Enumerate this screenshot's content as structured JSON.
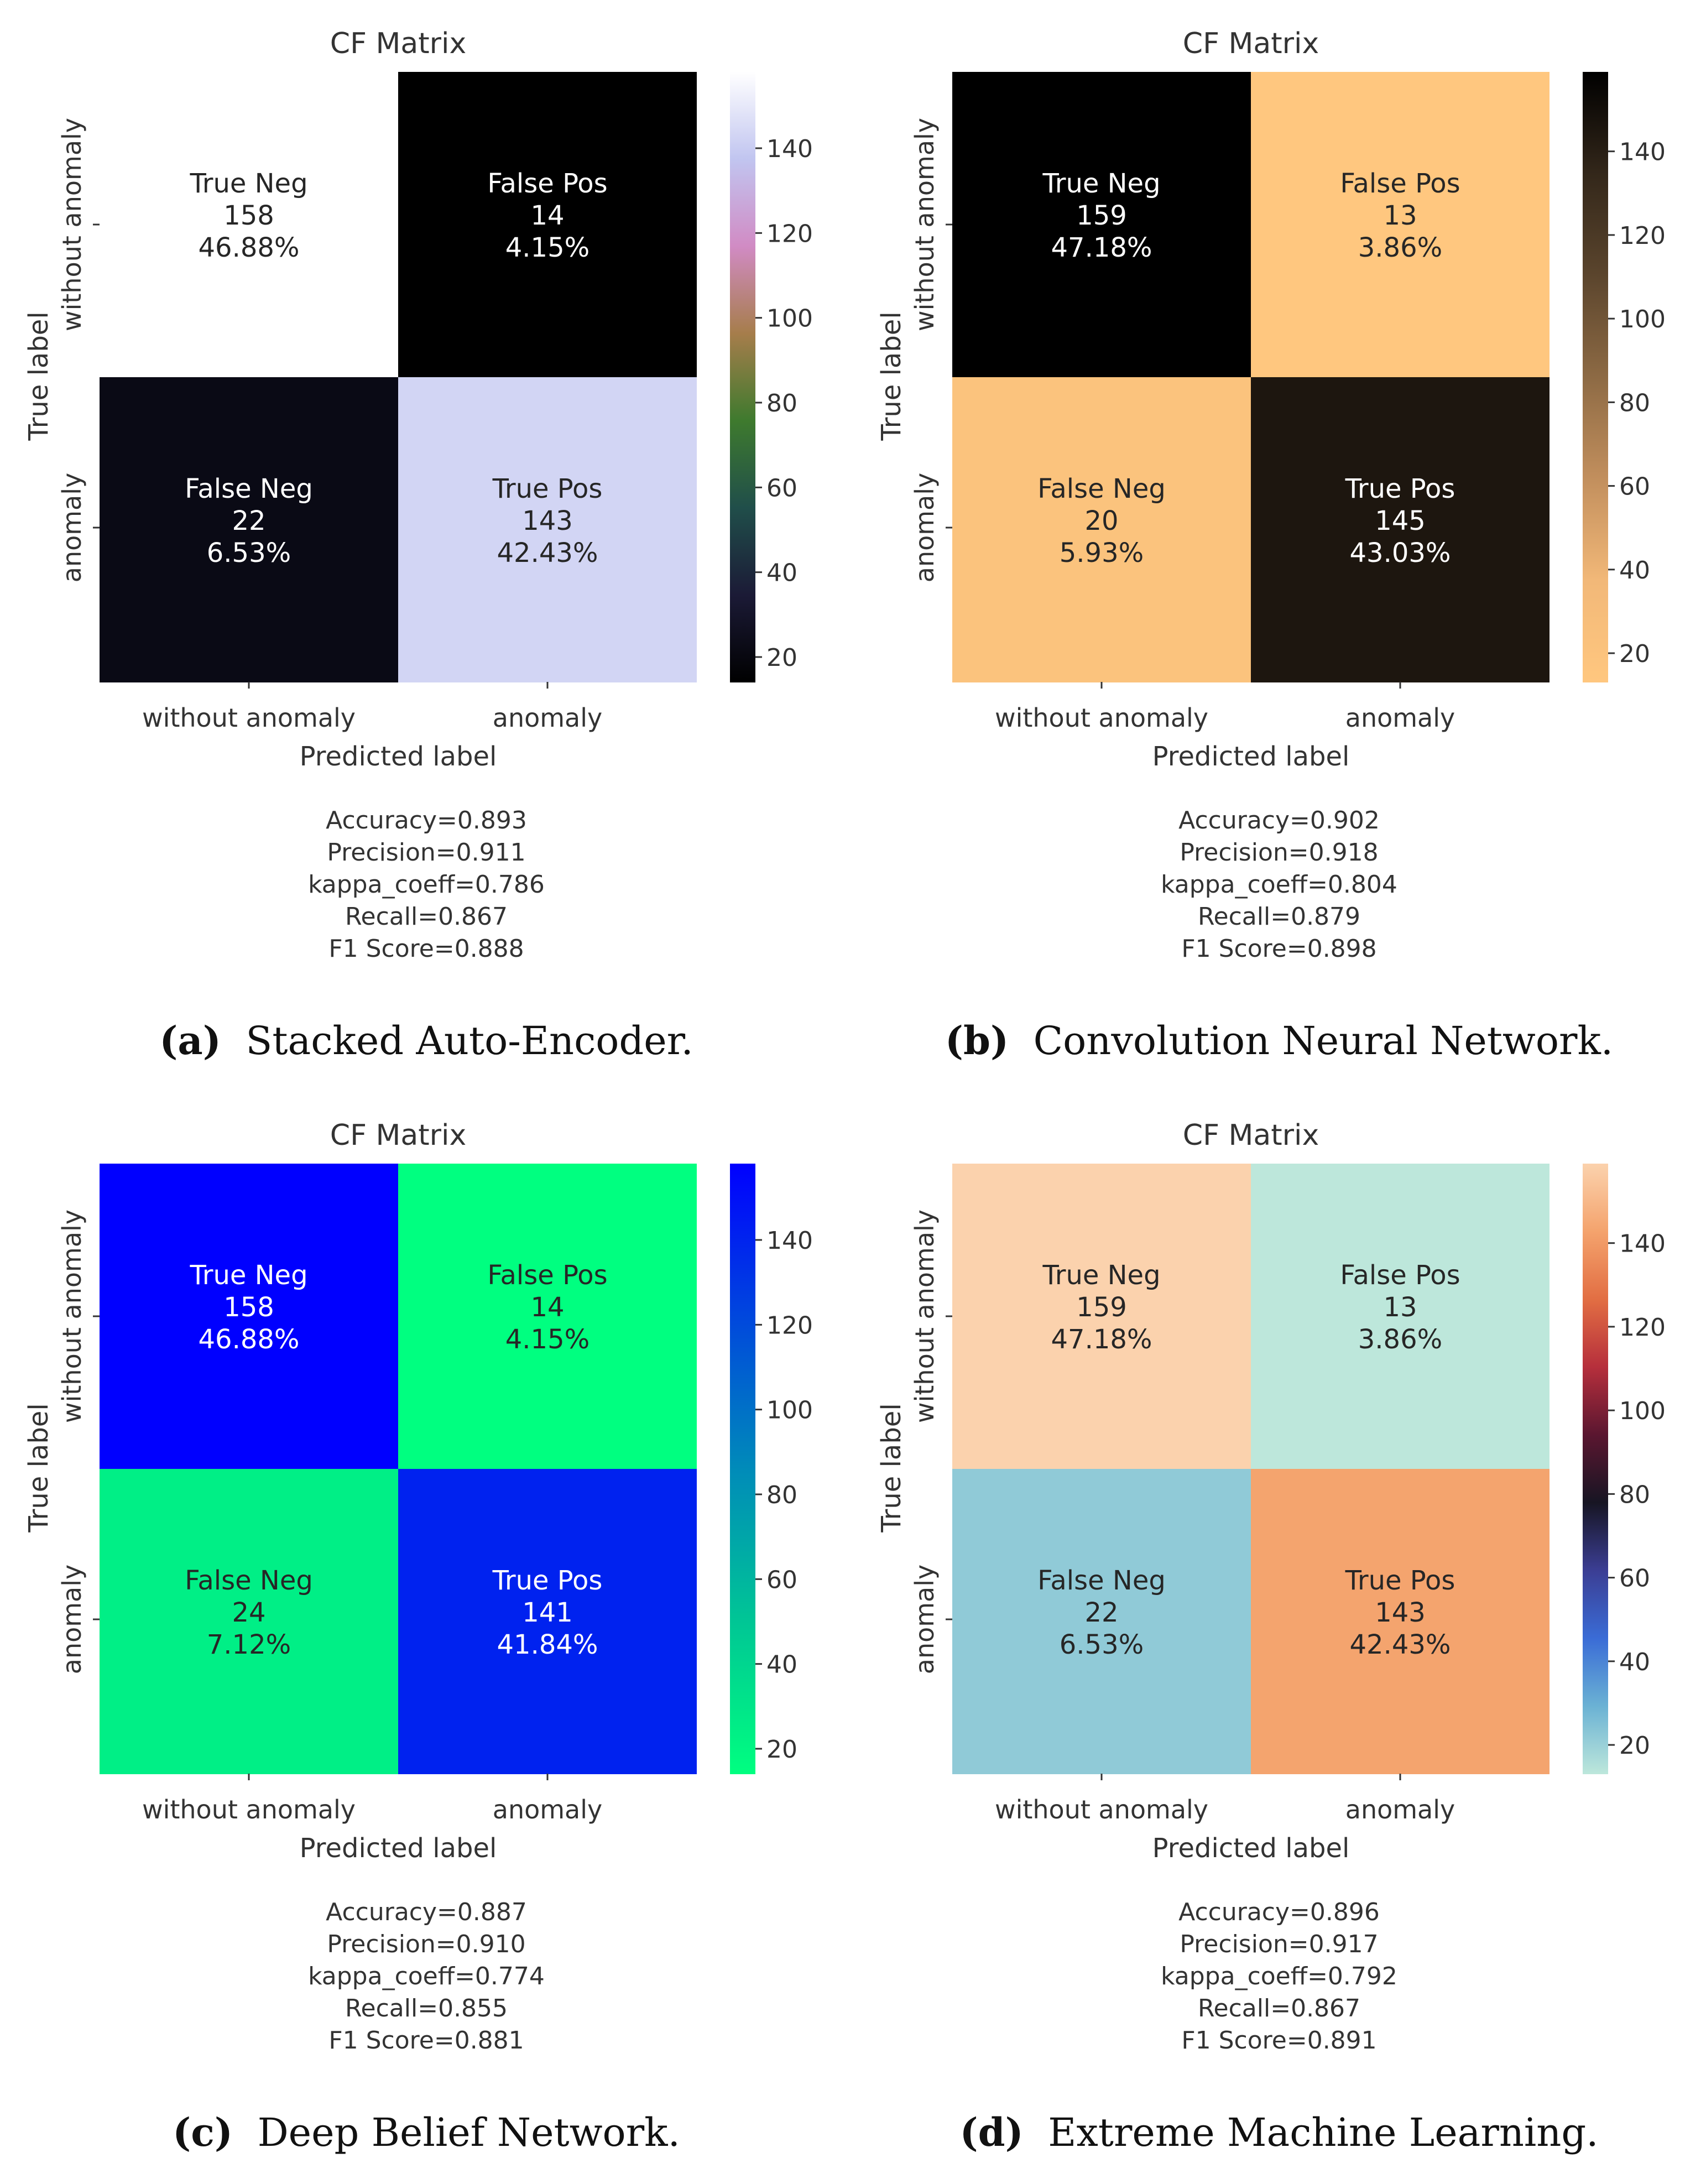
{
  "chart_data": [
    {
      "type": "heatmap",
      "id": "a",
      "title": "CF Matrix",
      "xlabel": "Predicted label",
      "ylabel": "True label",
      "x_categories": [
        "without anomaly",
        "anomaly"
      ],
      "y_categories": [
        "without anomaly",
        "anomaly"
      ],
      "cells": [
        {
          "row": 0,
          "col": 0,
          "name": "True Neg",
          "value": 158,
          "percent": "46.88%"
        },
        {
          "row": 0,
          "col": 1,
          "name": "False Pos",
          "value": 14,
          "percent": "4.15%"
        },
        {
          "row": 1,
          "col": 0,
          "name": "False Neg",
          "value": 22,
          "percent": "6.53%"
        },
        {
          "row": 1,
          "col": 1,
          "name": "True Pos",
          "value": 143,
          "percent": "42.43%"
        }
      ],
      "colormap": "cubehelix",
      "colorbar": {
        "range": [
          14,
          158
        ],
        "ticks": [
          20,
          40,
          60,
          80,
          100,
          120,
          140
        ]
      },
      "metrics": [
        "Accuracy=0.893",
        "Precision=0.911",
        "kappa_coeff=0.786",
        "Recall=0.867",
        "F1 Score=0.888"
      ],
      "caption_label": "(a)",
      "caption_text": "Stacked Auto-Encoder."
    },
    {
      "type": "heatmap",
      "id": "b",
      "title": "CF Matrix",
      "xlabel": "Predicted label",
      "ylabel": "True label",
      "x_categories": [
        "without anomaly",
        "anomaly"
      ],
      "y_categories": [
        "without anomaly",
        "anomaly"
      ],
      "cells": [
        {
          "row": 0,
          "col": 0,
          "name": "True Neg",
          "value": 159,
          "percent": "47.18%"
        },
        {
          "row": 0,
          "col": 1,
          "name": "False Pos",
          "value": 13,
          "percent": "3.86%"
        },
        {
          "row": 1,
          "col": 0,
          "name": "False Neg",
          "value": 20,
          "percent": "5.93%"
        },
        {
          "row": 1,
          "col": 1,
          "name": "True Pos",
          "value": 145,
          "percent": "43.03%"
        }
      ],
      "colormap": "copper_r",
      "colorbar": {
        "range": [
          13,
          159
        ],
        "ticks": [
          20,
          40,
          60,
          80,
          100,
          120,
          140
        ]
      },
      "metrics": [
        "Accuracy=0.902",
        "Precision=0.918",
        "kappa_coeff=0.804",
        "Recall=0.879",
        "F1 Score=0.898"
      ],
      "caption_label": "(b)",
      "caption_text": "Convolution Neural Network."
    },
    {
      "type": "heatmap",
      "id": "c",
      "title": "CF Matrix",
      "xlabel": "Predicted label",
      "ylabel": "True label",
      "x_categories": [
        "without anomaly",
        "anomaly"
      ],
      "y_categories": [
        "without anomaly",
        "anomaly"
      ],
      "cells": [
        {
          "row": 0,
          "col": 0,
          "name": "True Neg",
          "value": 158,
          "percent": "46.88%"
        },
        {
          "row": 0,
          "col": 1,
          "name": "False Pos",
          "value": 14,
          "percent": "4.15%"
        },
        {
          "row": 1,
          "col": 0,
          "name": "False Neg",
          "value": 24,
          "percent": "7.12%"
        },
        {
          "row": 1,
          "col": 1,
          "name": "True Pos",
          "value": 141,
          "percent": "41.84%"
        }
      ],
      "colormap": "winter_r",
      "colorbar": {
        "range": [
          14,
          158
        ],
        "ticks": [
          20,
          40,
          60,
          80,
          100,
          120,
          140
        ]
      },
      "metrics": [
        "Accuracy=0.887",
        "Precision=0.910",
        "kappa_coeff=0.774",
        "Recall=0.855",
        "F1 Score=0.881"
      ],
      "caption_label": "(c)",
      "caption_text": "Deep Belief Network."
    },
    {
      "type": "heatmap",
      "id": "d",
      "title": "CF Matrix",
      "xlabel": "Predicted label",
      "ylabel": "True label",
      "x_categories": [
        "without anomaly",
        "anomaly"
      ],
      "y_categories": [
        "without anomaly",
        "anomaly"
      ],
      "cells": [
        {
          "row": 0,
          "col": 0,
          "name": "True Neg",
          "value": 159,
          "percent": "47.18%"
        },
        {
          "row": 0,
          "col": 1,
          "name": "False Pos",
          "value": 13,
          "percent": "3.86%"
        },
        {
          "row": 1,
          "col": 0,
          "name": "False Neg",
          "value": 22,
          "percent": "6.53%"
        },
        {
          "row": 1,
          "col": 1,
          "name": "True Pos",
          "value": 143,
          "percent": "42.43%"
        }
      ],
      "colormap": "icefire",
      "colorbar": {
        "range": [
          13,
          159
        ],
        "ticks": [
          20,
          40,
          60,
          80,
          100,
          120,
          140
        ]
      },
      "metrics": [
        "Accuracy=0.896",
        "Precision=0.917",
        "kappa_coeff=0.792",
        "Recall=0.867",
        "F1 Score=0.891"
      ],
      "caption_label": "(d)",
      "caption_text": "Extreme Machine Learning."
    }
  ],
  "colormaps": {
    "cubehelix": [
      "#000000",
      "#1b1a36",
      "#204e4a",
      "#3e7a2e",
      "#a67d4b",
      "#d18bc4",
      "#c1c5f0",
      "#ffffff"
    ],
    "copper_r": [
      "#ffc77f",
      "#f2b878",
      "#c28f5d",
      "#8d6a44",
      "#5b452d",
      "#33271a",
      "#000000"
    ],
    "winter_r": [
      "#00ff80",
      "#00c695",
      "#008bb9",
      "#0047dd",
      "#0000ff"
    ],
    "icefire": [
      "#bde7db",
      "#6bb2d4",
      "#3a6cd6",
      "#3b3e94",
      "#171523",
      "#5a1630",
      "#b62f3c",
      "#e26e43",
      "#f4a36d",
      "#fbd2ad"
    ]
  }
}
